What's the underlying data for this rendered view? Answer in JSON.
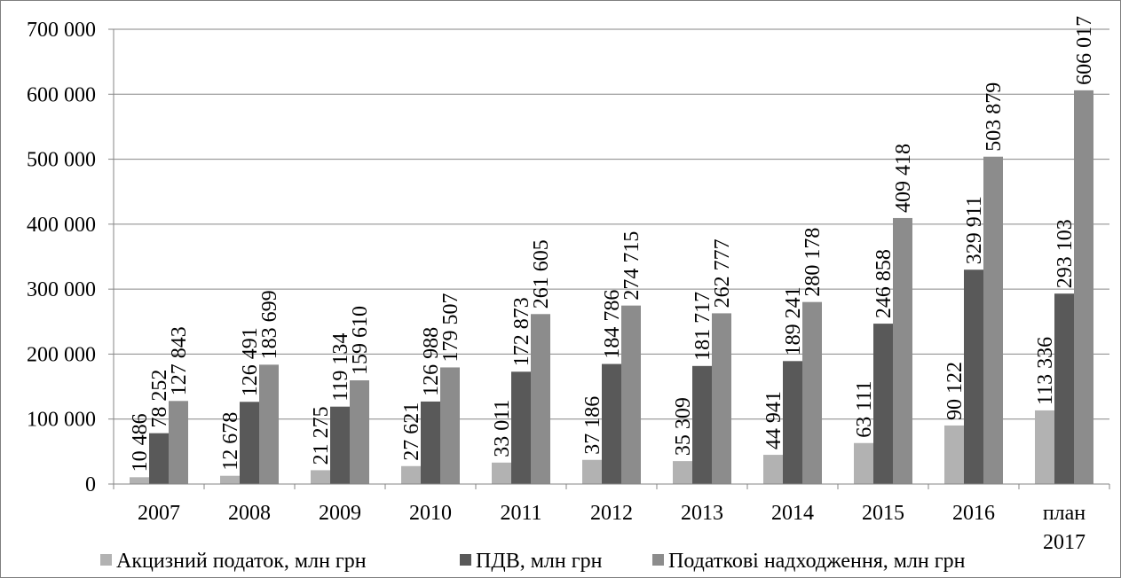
{
  "chart_data": {
    "type": "bar",
    "title": "",
    "xlabel": "",
    "ylabel": "",
    "ylim": [
      0,
      700000
    ],
    "yticks": [
      0,
      100000,
      200000,
      300000,
      400000,
      500000,
      600000,
      700000
    ],
    "ytick_labels": [
      "0",
      "100 000",
      "200 000",
      "300 000",
      "400 000",
      "500 000",
      "600 000",
      "700 000"
    ],
    "categories": [
      "2007",
      "2008",
      "2009",
      "2010",
      "2011",
      "2012",
      "2013",
      "2014",
      "2015",
      "2016",
      "план 2017"
    ],
    "category_lines": [
      [
        "2007"
      ],
      [
        "2008"
      ],
      [
        "2009"
      ],
      [
        "2010"
      ],
      [
        "2011"
      ],
      [
        "2012"
      ],
      [
        "2013"
      ],
      [
        "2014"
      ],
      [
        "2015"
      ],
      [
        "2016"
      ],
      [
        "план",
        "2017"
      ]
    ],
    "grid": "horizontal",
    "legend_position": "bottom",
    "series": [
      {
        "name": "Акцизний податок, млн грн",
        "color": "#b2b2b2",
        "values": [
          10486,
          12678,
          21275,
          27621,
          33011,
          37186,
          35309,
          44941,
          63111,
          90122,
          113336
        ],
        "labels": [
          "10 486",
          "12 678",
          "21 275",
          "27 621",
          "33 011",
          "37 186",
          "35 309",
          "44 941",
          "63 111",
          "90 122",
          "113 336"
        ]
      },
      {
        "name": "ПДВ, млн грн",
        "color": "#595959",
        "values": [
          78252,
          126491,
          119134,
          126988,
          172873,
          184786,
          181717,
          189241,
          246858,
          329911,
          293103
        ],
        "labels": [
          "78 252",
          "126 491",
          "119 134",
          "126 988",
          "172 873",
          "184 786",
          "181 717",
          "189 241",
          "246 858",
          "329 911",
          "293 103"
        ]
      },
      {
        "name": "Податкові надходження, млн грн",
        "color": "#8c8c8c",
        "values": [
          127843,
          183699,
          159610,
          179507,
          261605,
          274715,
          262777,
          280178,
          409418,
          503879,
          606017
        ],
        "labels": [
          "127 843",
          "183 699",
          "159 610",
          "179 507",
          "261 605",
          "274 715",
          "262 777",
          "280 178",
          "409 418",
          "503 879",
          "606 017"
        ]
      }
    ]
  }
}
